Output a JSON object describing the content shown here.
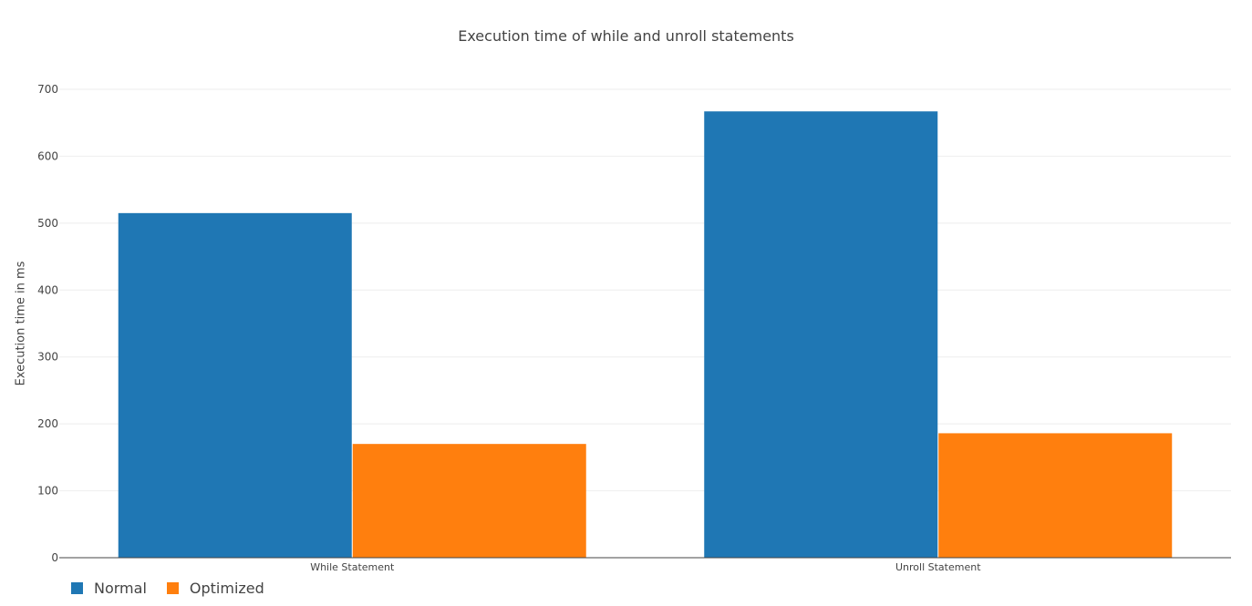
{
  "chart_data": {
    "type": "bar",
    "title": "Execution time of while and unroll statements",
    "xlabel": "",
    "ylabel": "Execution time in ms",
    "categories": [
      "While Statement",
      "Unroll Statement"
    ],
    "series": [
      {
        "name": "Normal",
        "color": "#1f77b4",
        "values": [
          515,
          667
        ]
      },
      {
        "name": "Optimized",
        "color": "#ff7f0e",
        "values": [
          170,
          186
        ]
      }
    ],
    "ylim": [
      0,
      700
    ],
    "yticks": [
      0,
      100,
      200,
      300,
      400,
      500,
      600,
      700
    ],
    "grid": true,
    "legend_position": "bottom-left"
  }
}
